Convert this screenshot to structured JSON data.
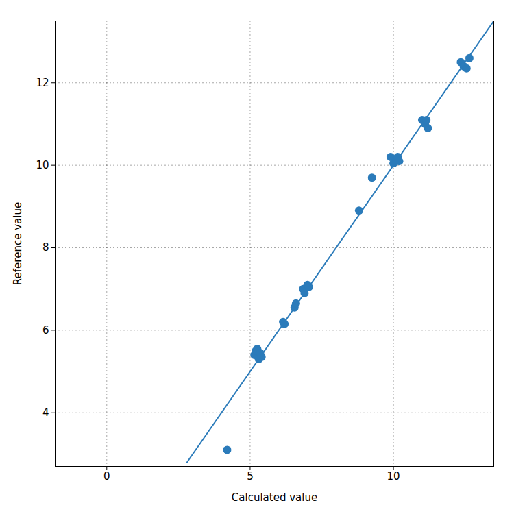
{
  "chart_data": {
    "type": "scatter",
    "xlabel": "Calculated value",
    "ylabel": "Reference value",
    "series": [
      {
        "type": "line",
        "color": "#2b7bba",
        "x": [
          2.8,
          13.5
        ],
        "values": [
          2.8,
          13.5
        ]
      },
      {
        "type": "scatter",
        "color": "#2b7bba",
        "x": [
          4.2,
          5.15,
          5.2,
          5.25,
          5.3,
          5.35,
          5.4,
          6.15,
          6.2,
          6.55,
          6.6,
          6.85,
          6.9,
          7.0,
          7.05,
          8.8,
          9.25,
          9.9,
          10.0,
          10.1,
          10.15,
          10.2,
          11.0,
          11.1,
          11.15,
          11.2,
          12.35,
          12.45,
          12.55,
          12.65
        ],
        "values": [
          3.1,
          5.4,
          5.5,
          5.55,
          5.3,
          5.45,
          5.35,
          6.2,
          6.15,
          6.55,
          6.65,
          7.0,
          6.9,
          7.1,
          7.05,
          8.9,
          9.7,
          10.2,
          10.05,
          10.1,
          10.2,
          10.1,
          11.1,
          11.0,
          11.1,
          10.9,
          12.5,
          12.4,
          12.35,
          12.6
        ]
      }
    ],
    "xlim": [
      -1.8,
      13.5
    ],
    "ylim": [
      2.7,
      13.5
    ],
    "xticks": [
      0,
      5,
      10
    ],
    "yticks": [
      4,
      6,
      8,
      10,
      12
    ],
    "grid": true
  }
}
